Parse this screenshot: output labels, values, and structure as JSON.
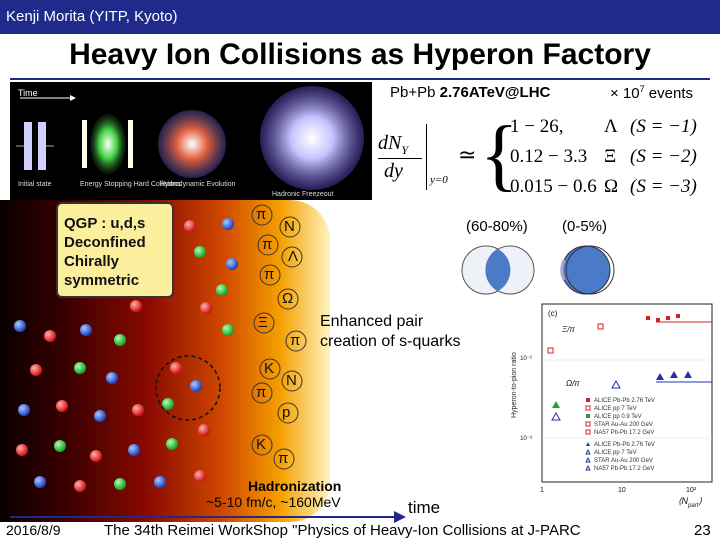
{
  "header": {
    "author": "Kenji Morita (YITP, Kyoto)"
  },
  "slide": {
    "title": "Heavy Ion Collisions as Hyperon Factory"
  },
  "collision_image": {
    "time_label": "Time",
    "stages": [
      "Initial state",
      "Energy Stopping\nHard Collisions",
      "Hydrodynamic\nEvolution",
      "Hadronic Freezeout"
    ]
  },
  "qgp_box": {
    "line1": "QGP : u,d,s",
    "line2": "Deconfined",
    "line3": "Chirally",
    "line4": "symmetric"
  },
  "hadrons": [
    "π",
    "N",
    "π",
    "Λ",
    "π",
    "Ω",
    "Ξ",
    "π",
    "K",
    "π",
    "N",
    "p",
    "K",
    "π"
  ],
  "formula": {
    "header_prefix": "Pb+Pb ",
    "header_bold": "2.76ATeV@LHC",
    "events_prefix": "× 10",
    "events_exp": "7",
    "events_suffix": " events",
    "lhs_num": "dN",
    "lhs_sub": "Y",
    "lhs_den": "dy",
    "lhs_eval": "y=0",
    "approx": "≃",
    "rows": [
      {
        "range": "1 − 26,",
        "particle": "Λ",
        "strangeness": "(S = −1)"
      },
      {
        "range": "0.12 − 3.3",
        "particle": "Ξ",
        "strangeness": "(S = −2)"
      },
      {
        "range": "0.015 − 0.6",
        "particle": "Ω",
        "strangeness": "(S = −3)"
      }
    ]
  },
  "centrality": {
    "peripheral": "(60-80%)",
    "central": "(0-5%)"
  },
  "enhanced": {
    "line1": "Enhanced pair",
    "line2": "creation of s-quarks"
  },
  "plot": {
    "panel_label": "(c)",
    "ylabel": "Hyperon-to-pion ratio",
    "xi_label": "Ξ/π",
    "omega_label": "Ω/π",
    "xlabel": "⟨N",
    "xlabel_sub": "part",
    "xlabel_end": "⟩",
    "xticks": [
      "1",
      "10",
      "10²"
    ],
    "yticks": [
      "10⁻²",
      "10⁻³"
    ],
    "legend": [
      "ALICE Pb-Pb 2.76 TeV",
      "ALICE pp 7 TeV",
      "ALICE pp 0.9 TeV",
      "STAR Au-Au 200 GeV",
      "NA57 Pb-Pb 17.2 GeV",
      "ALICE Pb-Pb 2.76 TeV",
      "ALICE pp 7 TeV",
      "STAR Au-Au 200 GeV",
      "NA57 Pb-Pb 17.2 GeV"
    ],
    "legend_colors": [
      "#d62020",
      "#d62020",
      "#2a9d3a",
      "#d62020",
      "#d62020",
      "#2233aa",
      "#2233aa",
      "#2233aa",
      "#2233aa"
    ]
  },
  "time_axis": {
    "hadronization": "Hadronization",
    "scales": "~5-10 fm/c, ~160MeV",
    "time_label": "time"
  },
  "footer": {
    "date": "2016/8/9",
    "workshop": "The 34th Reimei WorkShop \"Physics of Heavy-Ion Collisions at J-PARC",
    "page": "23"
  }
}
